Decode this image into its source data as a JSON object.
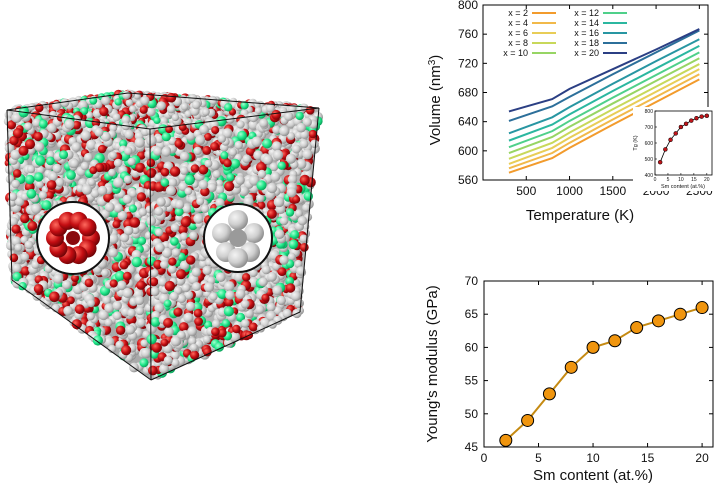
{
  "figure": {
    "cube": {
      "atom_colors": {
        "gray": "#cfcfcf",
        "red": "#c40d12",
        "green": "#1fe88a"
      },
      "inset_left_icon": "red-ring-cluster-icon",
      "inset_right_icon": "gray-octahedral-cluster-icon"
    }
  },
  "chart_data": [
    {
      "type": "line",
      "xlabel": "Temperature (K)",
      "ylabel": "Volume (nm3)",
      "xlim": [
        0,
        2600
      ],
      "ylim": [
        560,
        800
      ],
      "xticks": [
        "500",
        "1000",
        "1500",
        "2000",
        "2500"
      ],
      "yticks": [
        "560",
        "600",
        "640",
        "680",
        "720",
        "760",
        "800"
      ],
      "legend_position": "top-left",
      "colors": [
        "#f29b2c",
        "#f1b94a",
        "#e8cd57",
        "#c8d85a",
        "#97d564",
        "#4fd08a",
        "#2bb7a0",
        "#2896a2",
        "#2c6f9a",
        "#2b3f84"
      ],
      "series": [
        {
          "name": "x = 2",
          "x": [
            300,
            800,
            1000,
            1500,
            2000,
            2500
          ],
          "values": [
            570,
            590,
            604,
            636,
            667,
            698
          ]
        },
        {
          "name": "x = 4",
          "x": [
            300,
            800,
            1000,
            1500,
            2000,
            2500
          ],
          "values": [
            576,
            597,
            611,
            643,
            674,
            705
          ]
        },
        {
          "name": "x = 6",
          "x": [
            300,
            800,
            1000,
            1500,
            2000,
            2500
          ],
          "values": [
            582,
            604,
            618,
            650,
            681,
            712
          ]
        },
        {
          "name": "x = 8",
          "x": [
            300,
            800,
            1000,
            1500,
            2000,
            2500
          ],
          "values": [
            589,
            611,
            625,
            657,
            688,
            719
          ]
        },
        {
          "name": "x = 10",
          "x": [
            300,
            800,
            1000,
            1500,
            2000,
            2500
          ],
          "values": [
            597,
            619,
            633,
            665,
            696,
            727
          ]
        },
        {
          "name": "x = 12",
          "x": [
            300,
            800,
            1000,
            1500,
            2000,
            2500
          ],
          "values": [
            605,
            627,
            641,
            673,
            704,
            735
          ]
        },
        {
          "name": "x = 14",
          "x": [
            300,
            800,
            1000,
            1500,
            2000,
            2500
          ],
          "values": [
            614,
            636,
            650,
            682,
            713,
            744
          ]
        },
        {
          "name": "x = 16",
          "x": [
            300,
            800,
            1000,
            1500,
            2000,
            2500
          ],
          "values": [
            624,
            646,
            660,
            692,
            723,
            753
          ]
        },
        {
          "name": "x = 18",
          "x": [
            300,
            800,
            1000,
            1500,
            2000,
            2500
          ],
          "values": [
            641,
            661,
            674,
            705,
            735,
            765
          ]
        },
        {
          "name": "x = 20",
          "x": [
            300,
            800,
            1000,
            1500,
            2000,
            2500
          ],
          "values": [
            654,
            671,
            685,
            712,
            739,
            767
          ]
        }
      ],
      "inset": {
        "type": "line",
        "xlabel": "Sm content (at.%)",
        "ylabel": "Tg (K)",
        "xlim": [
          0,
          22
        ],
        "ylim": [
          400,
          800
        ],
        "xticks": [
          "0",
          "5",
          "10",
          "15",
          "20"
        ],
        "yticks": [
          "400",
          "500",
          "600",
          "700",
          "800"
        ],
        "x": [
          2,
          4,
          6,
          8,
          10,
          12,
          14,
          16,
          18,
          20
        ],
        "values": [
          480,
          560,
          620,
          660,
          700,
          720,
          740,
          755,
          765,
          770
        ],
        "color": "#c0161b"
      }
    },
    {
      "type": "line",
      "xlabel": "Sm content (at.%)",
      "ylabel": "Young's modulus (GPa)",
      "xlim": [
        0,
        21
      ],
      "ylim": [
        45,
        70
      ],
      "xticks": [
        "0",
        "5",
        "10",
        "15",
        "20"
      ],
      "yticks": [
        "45",
        "50",
        "55",
        "60",
        "65",
        "70"
      ],
      "x": [
        2,
        4,
        6,
        8,
        10,
        12,
        14,
        16,
        18,
        20
      ],
      "values": [
        46,
        49,
        53,
        57,
        60,
        61,
        63,
        64,
        65,
        66
      ],
      "marker_color": "#f0950e",
      "line_color": "#c58a12"
    }
  ]
}
